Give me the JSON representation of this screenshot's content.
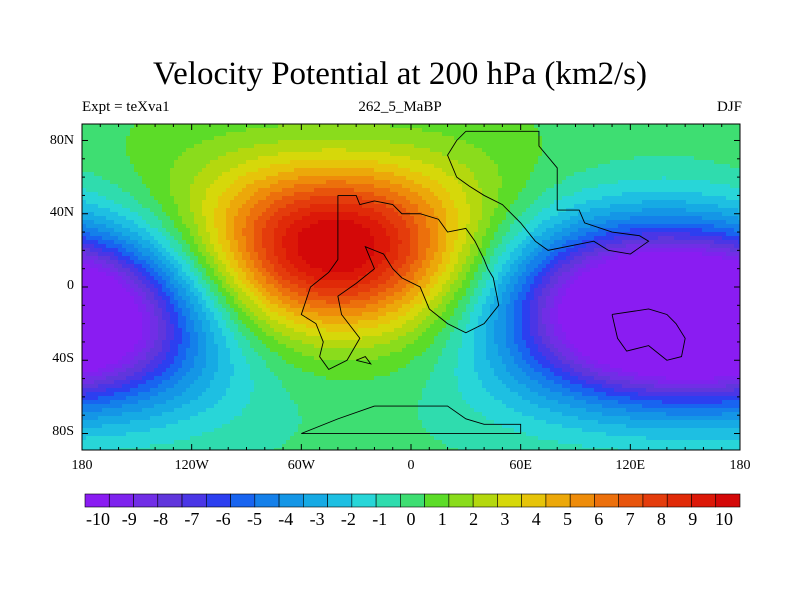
{
  "title": "Velocity Potential at 200 hPa (km2/s)",
  "left_label": "Expt = teXva1",
  "center_label": "262_5_MaBP",
  "right_label": "DJF",
  "lat_labels": [
    "80N",
    "40N",
    "0",
    "40S",
    "80S"
  ],
  "lon_labels": [
    "180",
    "120W",
    "60W",
    "0",
    "60E",
    "120E",
    "180"
  ],
  "colorbar": {
    "labels": [
      "-10",
      "-9",
      "-8",
      "-7",
      "-6",
      "-5",
      "-4",
      "-3",
      "-2",
      "-1",
      "0",
      "1",
      "2",
      "3",
      "4",
      "5",
      "6",
      "7",
      "8",
      "9",
      "10"
    ],
    "colors": [
      "#8a1cf2",
      "#7e23ee",
      "#712ee6",
      "#6036dc",
      "#4a36e6",
      "#2c3ff0",
      "#1864f0",
      "#1480ea",
      "#1496e6",
      "#16aae4",
      "#1ebfe2",
      "#28d6d8",
      "#2fdcae",
      "#3ede72",
      "#5cdc28",
      "#8adc1c",
      "#b4d80e",
      "#d6d80a",
      "#e6c40a",
      "#eca80a",
      "#ee8c0a",
      "#ec700c",
      "#e8540c",
      "#e43c0c",
      "#e02a08",
      "#dc1808",
      "#d40808"
    ]
  },
  "field": {
    "description_value_range": [
      -11,
      11
    ],
    "centers": [
      {
        "name": "pacific-low",
        "lon": -178,
        "lat": -18,
        "amp": -11
      },
      {
        "name": "indo-pacific-low",
        "lon": 115,
        "lat": -12,
        "amp": -11.5
      },
      {
        "name": "atlantic-high",
        "lon": -42,
        "lat": 22,
        "amp": 11.5
      }
    ]
  },
  "coastline": [
    [
      [
        -40,
        50
      ],
      [
        -30,
        50
      ],
      [
        -28,
        45
      ],
      [
        -20,
        47
      ],
      [
        -10,
        45
      ],
      [
        -5,
        40
      ],
      [
        5,
        40
      ],
      [
        15,
        37
      ],
      [
        20,
        30
      ],
      [
        30,
        32
      ],
      [
        35,
        25
      ],
      [
        40,
        15
      ],
      [
        42,
        10
      ],
      [
        45,
        5
      ],
      [
        48,
        -10
      ],
      [
        40,
        -20
      ],
      [
        30,
        -25
      ],
      [
        20,
        -20
      ],
      [
        10,
        -12
      ],
      [
        5,
        0
      ],
      [
        -5,
        5
      ],
      [
        -10,
        10
      ],
      [
        -15,
        18
      ],
      [
        -20,
        20
      ],
      [
        -25,
        22
      ],
      [
        -20,
        10
      ],
      [
        -30,
        2
      ],
      [
        -40,
        -5
      ],
      [
        -38,
        -15
      ],
      [
        -28,
        -28
      ],
      [
        -35,
        -40
      ],
      [
        -45,
        -45
      ],
      [
        -50,
        -38
      ],
      [
        -48,
        -30
      ],
      [
        -52,
        -20
      ],
      [
        -60,
        -15
      ],
      [
        -55,
        0
      ],
      [
        -45,
        8
      ],
      [
        -40,
        15
      ],
      [
        -40,
        50
      ]
    ],
    [
      [
        30,
        85
      ],
      [
        70,
        85
      ],
      [
        70,
        77
      ],
      [
        80,
        65
      ],
      [
        80,
        42
      ],
      [
        92,
        42
      ],
      [
        95,
        35
      ],
      [
        110,
        30
      ],
      [
        125,
        28
      ],
      [
        130,
        25
      ],
      [
        120,
        18
      ],
      [
        108,
        20
      ],
      [
        100,
        25
      ],
      [
        85,
        22
      ],
      [
        75,
        20
      ],
      [
        68,
        25
      ],
      [
        60,
        35
      ],
      [
        50,
        45
      ],
      [
        40,
        50
      ],
      [
        32,
        55
      ],
      [
        25,
        60
      ],
      [
        20,
        72
      ],
      [
        25,
        80
      ],
      [
        30,
        85
      ]
    ],
    [
      [
        -20,
        -65
      ],
      [
        20,
        -65
      ],
      [
        30,
        -72
      ],
      [
        40,
        -75
      ],
      [
        60,
        -75
      ],
      [
        60,
        -80
      ],
      [
        -60,
        -80
      ],
      [
        -40,
        -72
      ],
      [
        -20,
        -65
      ]
    ],
    [
      [
        110,
        -15
      ],
      [
        130,
        -12
      ],
      [
        140,
        -15
      ],
      [
        145,
        -20
      ],
      [
        150,
        -28
      ],
      [
        148,
        -38
      ],
      [
        140,
        -40
      ],
      [
        130,
        -32
      ],
      [
        118,
        -35
      ],
      [
        113,
        -28
      ],
      [
        110,
        -15
      ]
    ],
    [
      [
        -30,
        -40
      ],
      [
        -25,
        -38
      ],
      [
        -22,
        -42
      ],
      [
        -30,
        -40
      ]
    ]
  ]
}
